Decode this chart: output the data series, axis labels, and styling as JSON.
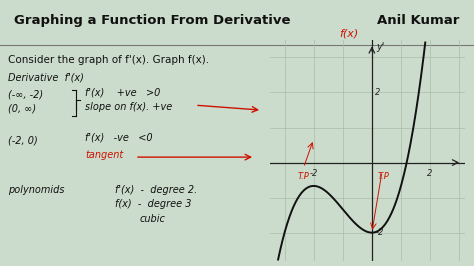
{
  "title_left": "Graphing a Function From Derivative",
  "title_right": "Anil Kumar",
  "subtitle": "Consider the graph of f'(x). Graph f(x).",
  "bg_color": "#ccdccc",
  "title_bg": "#c8d8c0",
  "text_dark": "#111111",
  "text_red": "#cc1100",
  "grid_color": "#aabcaa",
  "curve_color": "#111111",
  "graph_xlim": [
    -3.5,
    3.2
  ],
  "graph_ylim": [
    -2.8,
    3.5
  ],
  "figsize": [
    4.74,
    2.66
  ],
  "dpi": 100
}
